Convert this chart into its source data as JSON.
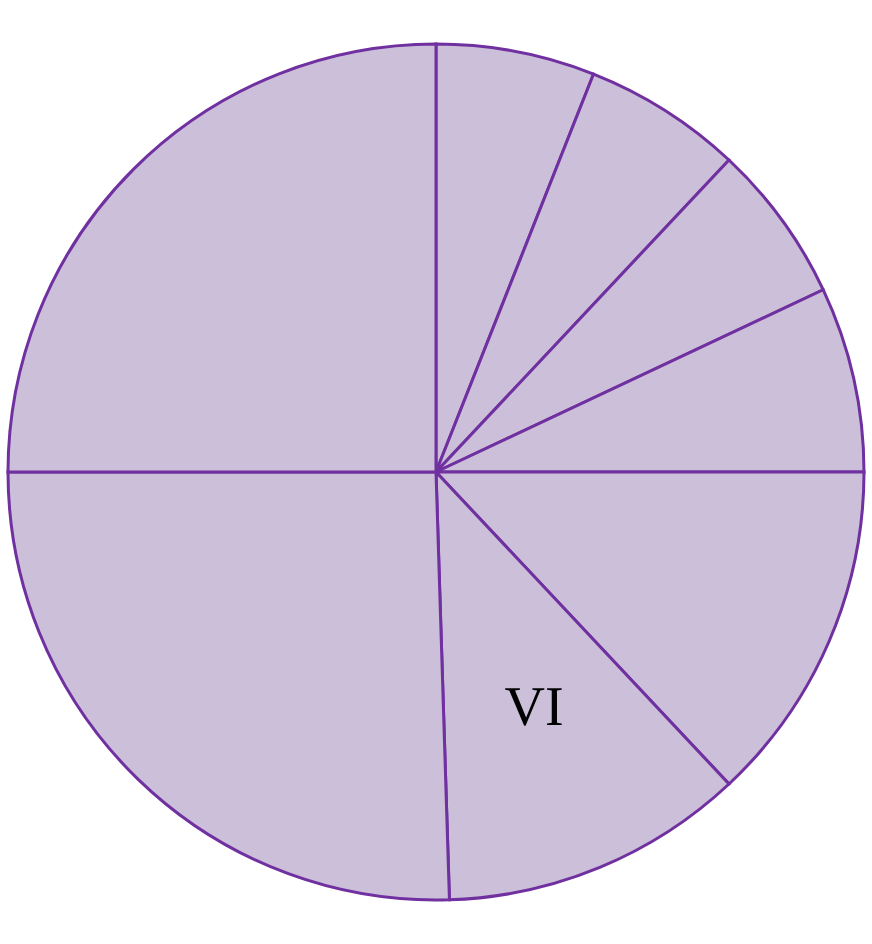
{
  "chart_data": {
    "type": "pie",
    "categories": [
      null,
      null,
      null,
      null,
      null,
      "VI",
      null,
      null
    ],
    "values": [
      6,
      6,
      6,
      7,
      13,
      11.5,
      25.5,
      25
    ],
    "colors": [
      "#cbbfd9",
      "#cbbfd9",
      "#cbbfd9",
      "#cbbfd9",
      "#cbbfd9",
      "#cbbfd9",
      "#cbbfd9",
      "#cbbfd9"
    ]
  }
}
